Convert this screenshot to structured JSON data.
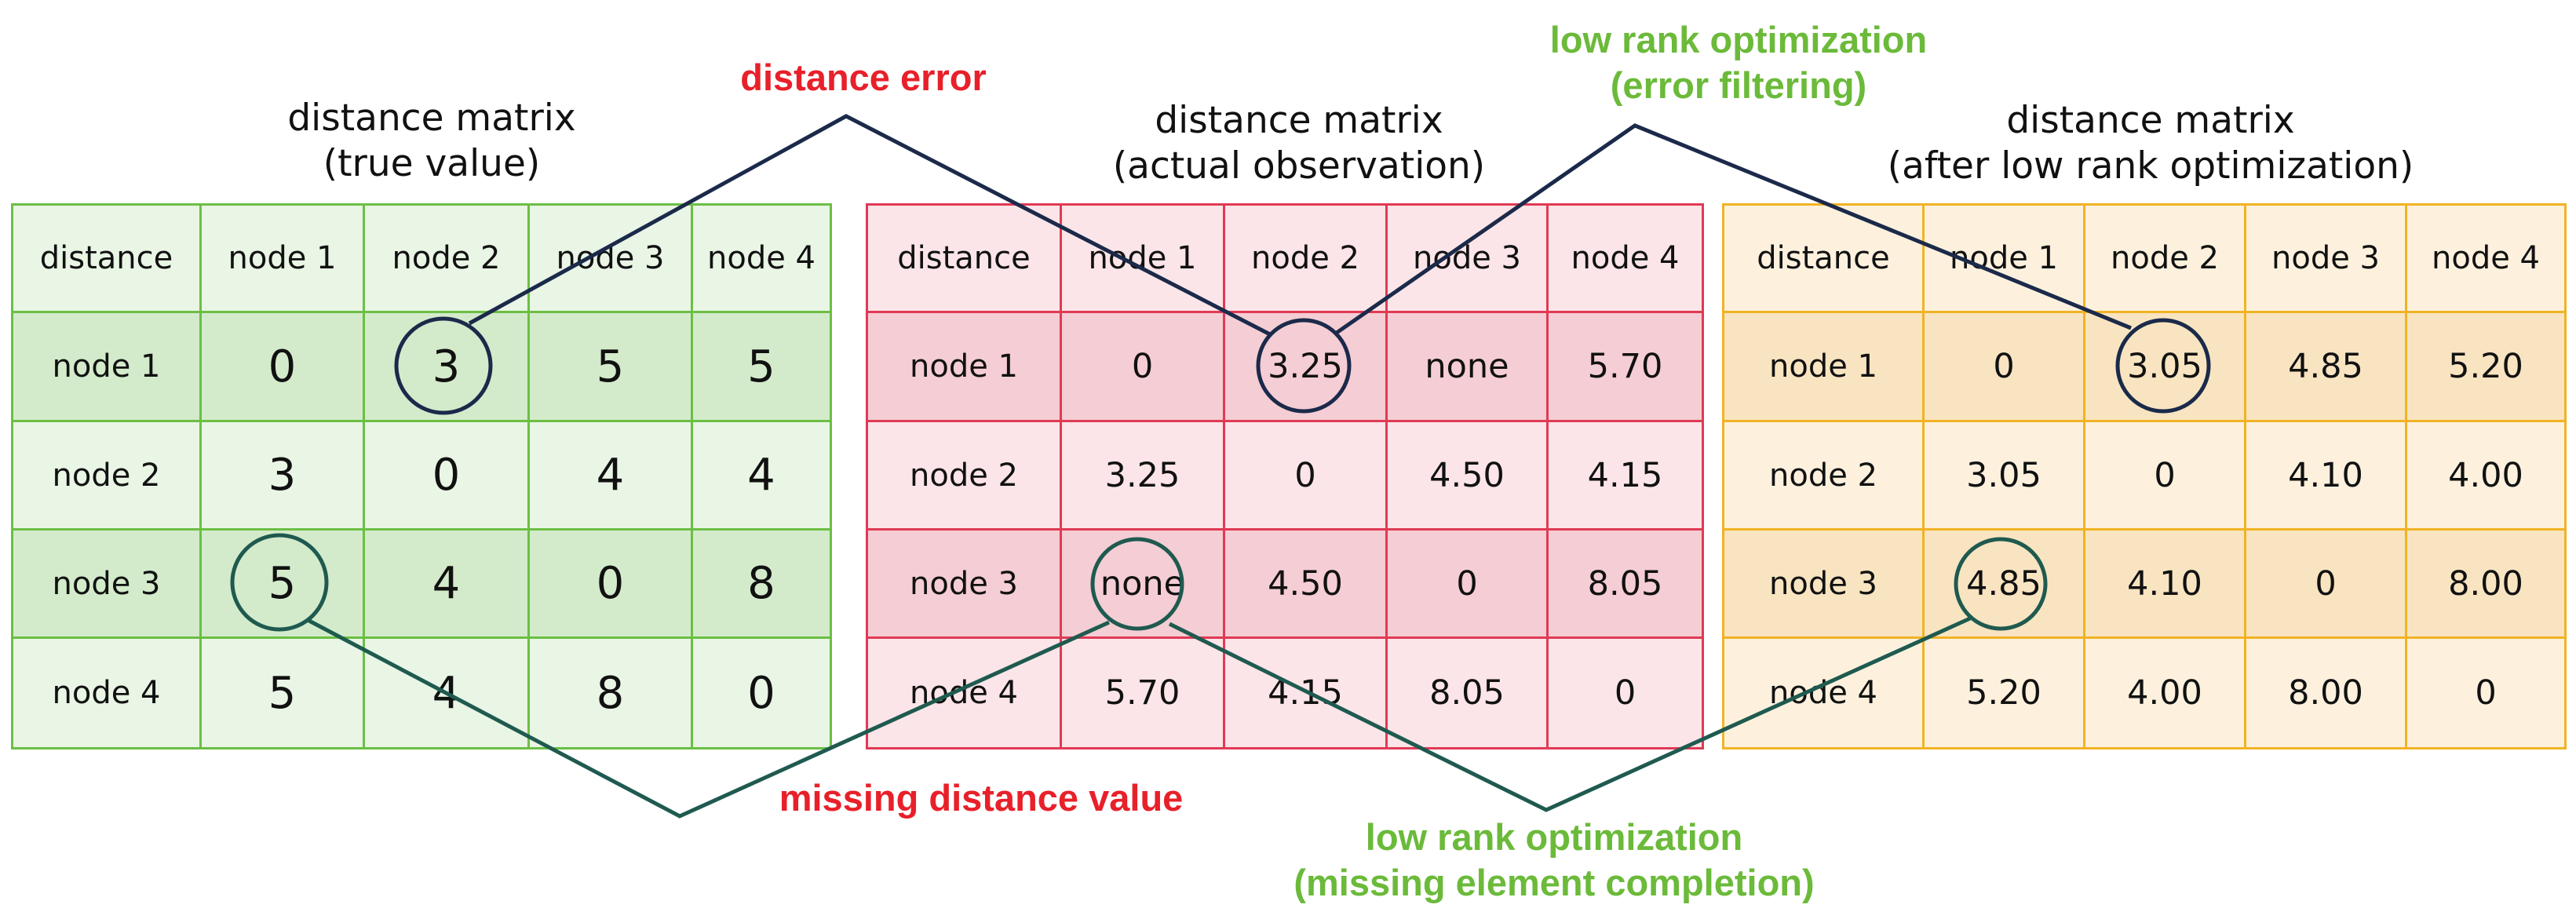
{
  "matrices": [
    {
      "title_line1": "distance matrix",
      "title_line2": "(true value)",
      "corner": "distance",
      "headers": [
        "node 1",
        "node 2",
        "node 3",
        "node 4"
      ],
      "rows": [
        {
          "label": "node 1",
          "cells": [
            "0",
            "3",
            "5",
            "5"
          ]
        },
        {
          "label": "node 2",
          "cells": [
            "3",
            "0",
            "4",
            "4"
          ]
        },
        {
          "label": "node 3",
          "cells": [
            "5",
            "4",
            "0",
            "8"
          ]
        },
        {
          "label": "node 4",
          "cells": [
            "5",
            "4",
            "8",
            "0"
          ]
        }
      ]
    },
    {
      "title_line1": "distance matrix",
      "title_line2": "(actual observation)",
      "corner": "distance",
      "headers": [
        "node 1",
        "node 2",
        "node 3",
        "node 4"
      ],
      "rows": [
        {
          "label": "node 1",
          "cells": [
            "0",
            "3.25",
            "none",
            "5.70"
          ]
        },
        {
          "label": "node 2",
          "cells": [
            "3.25",
            "0",
            "4.50",
            "4.15"
          ]
        },
        {
          "label": "node 3",
          "cells": [
            "none",
            "4.50",
            "0",
            "8.05"
          ]
        },
        {
          "label": "node 4",
          "cells": [
            "5.70",
            "4.15",
            "8.05",
            "0"
          ]
        }
      ]
    },
    {
      "title_line1": "distance matrix",
      "title_line2": "(after low rank optimization)",
      "corner": "distance",
      "headers": [
        "node 1",
        "node 2",
        "node 3",
        "node 4"
      ],
      "rows": [
        {
          "label": "node 1",
          "cells": [
            "0",
            "3.05",
            "4.85",
            "5.20"
          ]
        },
        {
          "label": "node 2",
          "cells": [
            "3.05",
            "0",
            "4.10",
            "4.00"
          ]
        },
        {
          "label": "node 3",
          "cells": [
            "4.85",
            "4.10",
            "0",
            "8.00"
          ]
        },
        {
          "label": "node 4",
          "cells": [
            "5.20",
            "4.00",
            "8.00",
            "0"
          ]
        }
      ]
    }
  ],
  "annotations": {
    "distance_error": "distance error",
    "missing_value": "missing distance value",
    "lro_filter_line1": "low rank optimization",
    "lro_filter_line2": "(error filtering)",
    "lro_complete_line1": "low rank optimization",
    "lro_complete_line2": "(missing element completion)"
  },
  "colors": {
    "true_value_table": "#6bbf44",
    "observation_table": "#e03a55",
    "optimized_table": "#f1b324",
    "error_annotation": "#e8202a",
    "optimization_annotation": "#6bba3a",
    "connector_navy": "#1b2a4a",
    "connector_teal": "#1f5a4f"
  }
}
